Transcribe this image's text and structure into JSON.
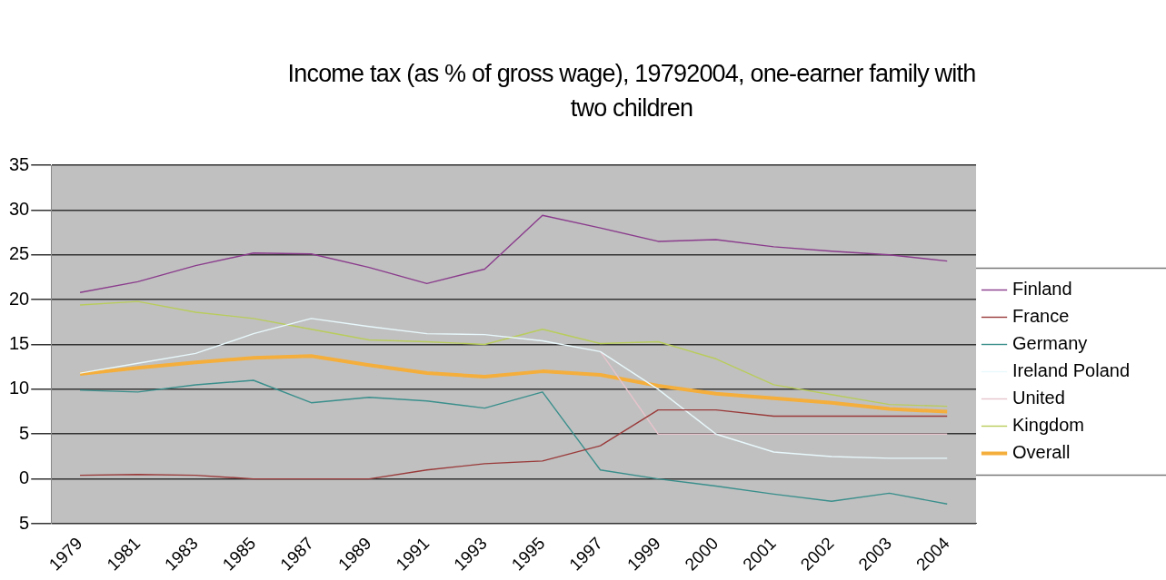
{
  "chart_data": {
    "type": "line",
    "title": "Income tax (as % of gross wage), 19792004, one-earner family with two children",
    "categories": [
      "1979",
      "1981",
      "1983",
      "1985",
      "1987",
      "1989",
      "1991",
      "1993",
      "1995",
      "1997",
      "1999",
      "2000",
      "2001",
      "2002",
      "2003",
      "2004"
    ],
    "series": [
      {
        "name": "Finland",
        "color": "#8a3c8c",
        "values": [
          20.8,
          22.0,
          23.8,
          25.2,
          25.1,
          23.6,
          21.8,
          23.4,
          29.4,
          28.0,
          26.5,
          26.7,
          25.9,
          25.4,
          25.0,
          24.3
        ]
      },
      {
        "name": "France",
        "color": "#9a3a3a",
        "values": [
          0.4,
          0.5,
          0.4,
          0,
          0,
          0,
          1.0,
          1.7,
          2.0,
          3.7,
          7.7,
          7.7,
          7.0,
          7.0,
          7.0,
          7.0
        ]
      },
      {
        "name": "Germany",
        "color": "#3a8f8c",
        "values": [
          9.9,
          9.7,
          10.5,
          11.0,
          8.5,
          9.1,
          8.7,
          7.9,
          9.7,
          1.0,
          0,
          -0.8,
          -1.7,
          -2.5,
          -1.6,
          -2.8
        ]
      },
      {
        "name": "Ireland Poland",
        "color": "#e8f8fc",
        "values": [
          11.8,
          12.9,
          14.0,
          16.2,
          17.9,
          17.0,
          16.2,
          16.1,
          15.4,
          14.2,
          10.0,
          5.0,
          3.0,
          2.5,
          2.3,
          2.3
        ]
      },
      {
        "name": "United",
        "color": "#e6c4cc",
        "values": [
          null,
          null,
          null,
          null,
          null,
          null,
          null,
          null,
          null,
          14.2,
          5.0,
          5.0,
          5.0,
          5.0,
          5.0,
          5.0
        ]
      },
      {
        "name": "Kingdom",
        "color": "#b8cc5c",
        "values": [
          19.4,
          19.8,
          18.6,
          17.9,
          16.7,
          15.5,
          15.3,
          15.0,
          16.7,
          15.1,
          15.3,
          13.4,
          10.5,
          9.4,
          8.3,
          8.1
        ]
      },
      {
        "name": "Overall",
        "color": "#f4ae3c",
        "values": [
          11.7,
          12.4,
          13.0,
          13.5,
          13.7,
          12.7,
          11.8,
          11.4,
          12.0,
          11.6,
          10.4,
          9.5,
          9.0,
          8.5,
          7.8,
          7.5
        ]
      }
    ],
    "ylim": [
      -5,
      35
    ],
    "yticks": [
      {
        "value": -5,
        "label": "5"
      },
      0,
      5,
      10,
      15,
      20,
      25,
      30,
      35
    ],
    "grid": "y",
    "legend": "right",
    "marker": "none",
    "line_style": "solid"
  }
}
